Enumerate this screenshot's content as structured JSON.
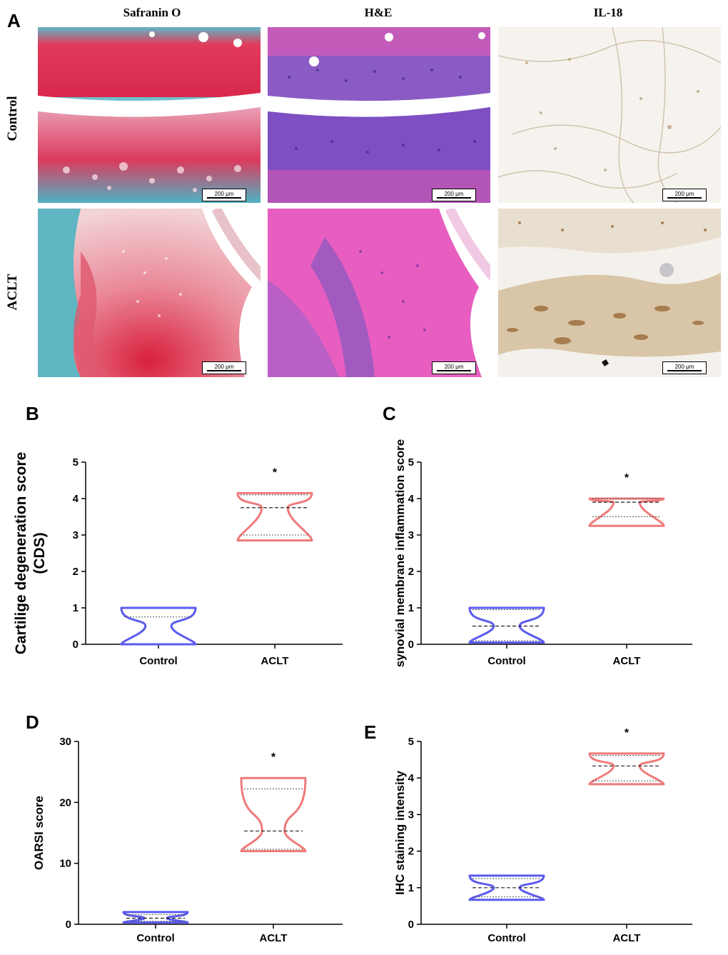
{
  "figure": {
    "panel_a": {
      "letter": "A",
      "columns": [
        "Safranin O",
        "H&E",
        "IL-18"
      ],
      "rows": [
        "Control",
        "ACLT"
      ],
      "scale_bar": "200 μm"
    }
  },
  "chart_data": [
    {
      "panel": "B",
      "type": "violin",
      "categories": [
        "Control",
        "ACLT"
      ],
      "ylabel": "Cartilige degeneration score\n(CDS)",
      "ylim": [
        0,
        5
      ],
      "yticks": [
        0,
        1,
        2,
        3,
        4,
        5
      ],
      "significance": "*",
      "series": [
        {
          "category": "Control",
          "min": 0,
          "max": 1,
          "median": null,
          "q1": null,
          "q3": 0.75,
          "color": "#5b5bf0"
        },
        {
          "category": "ACLT",
          "min": 2.85,
          "max": 4.15,
          "median": 3.75,
          "q1": 3.0,
          "q3": 4.1,
          "color": "#f07a7a"
        }
      ]
    },
    {
      "panel": "C",
      "type": "violin",
      "categories": [
        "Control",
        "ACLT"
      ],
      "ylabel": "synovial membrane inflammation score",
      "ylim": [
        0,
        5
      ],
      "yticks": [
        0,
        1,
        2,
        3,
        4,
        5
      ],
      "significance": "*",
      "series": [
        {
          "category": "Control",
          "min": 0.05,
          "max": 1.0,
          "median": 0.5,
          "q1": 0.1,
          "q3": 0.95,
          "color": "#5b5bf0"
        },
        {
          "category": "ACLT",
          "min": 3.25,
          "max": 4.0,
          "median": 3.9,
          "q1": 3.5,
          "q3": 4.0,
          "color": "#f07a7a"
        }
      ]
    },
    {
      "panel": "D",
      "type": "violin",
      "categories": [
        "Control",
        "ACLT"
      ],
      "ylabel": "OARSI score",
      "ylim": [
        0,
        30
      ],
      "yticks": [
        0,
        10,
        20,
        30
      ],
      "significance": "*",
      "series": [
        {
          "category": "Control",
          "min": 0.3,
          "max": 2.0,
          "median": 1.0,
          "q1": 0.5,
          "q3": 1.6,
          "color": "#5b5bf0"
        },
        {
          "category": "ACLT",
          "min": 12.0,
          "max": 24.0,
          "median": 15.3,
          "q1": 12.3,
          "q3": 22.2,
          "color": "#f07a7a"
        }
      ]
    },
    {
      "panel": "E",
      "type": "violin",
      "categories": [
        "Control",
        "ACLT"
      ],
      "ylabel": "IHC staining intensity",
      "ylim": [
        0,
        5
      ],
      "yticks": [
        0,
        1,
        2,
        3,
        4,
        5
      ],
      "significance": "*",
      "series": [
        {
          "category": "Control",
          "min": 0.67,
          "max": 1.33,
          "median": 1.0,
          "q1": 0.75,
          "q3": 1.25,
          "color": "#5b5bf0"
        },
        {
          "category": "ACLT",
          "min": 3.83,
          "max": 4.67,
          "median": 4.33,
          "q1": 3.92,
          "q3": 4.62,
          "color": "#f07a7a"
        }
      ]
    }
  ]
}
